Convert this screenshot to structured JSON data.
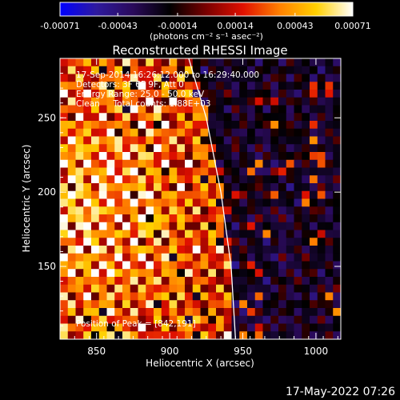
{
  "chart_data": {
    "type": "heatmap",
    "title": "Reconstructed RHESSI Image",
    "xlabel": "Heliocentric X (arcsec)",
    "ylabel": "Heliocentric Y (arcsec)",
    "xlim": [
      825,
      1017
    ],
    "ylim": [
      101,
      290
    ],
    "x_ticks": [
      850,
      900,
      950,
      1000
    ],
    "y_ticks": [
      150,
      200,
      250
    ],
    "colorbar": {
      "range": [
        -0.00071,
        0.00071
      ],
      "ticks": [
        "-0.00071",
        "-0.00043",
        "-0.00014",
        "0.00014",
        "0.00043",
        "0.00071"
      ],
      "tick_values": [
        -0.00071,
        -0.00043,
        -0.00014,
        0.00014,
        0.00043,
        0.00071
      ],
      "units": "(photons cm⁻² s⁻¹ asec⁻²)",
      "colors": [
        "#0000ff",
        "#2e1a9e",
        "#2a0a5a",
        "#000000",
        "#7a0000",
        "#e01000",
        "#ff8000",
        "#ffd000",
        "#ffffff"
      ]
    },
    "limb": [
      [
        913,
        290
      ],
      [
        925,
        250
      ],
      [
        935,
        200
      ],
      [
        942,
        150
      ],
      [
        945,
        101
      ]
    ],
    "annotations": [
      "17-Sep-2014 16:26:12.000 to 16:29:40.000",
      "Detectors: 3F 6F 9F, Att 0",
      "Energy Range: 25.0 - 50.0 keV",
      "Clean     Total counts: 1.88E+03",
      "Position of Peak = [842,191]"
    ]
  },
  "footer": {
    "timestamp": "17-May-2022 07:26"
  }
}
